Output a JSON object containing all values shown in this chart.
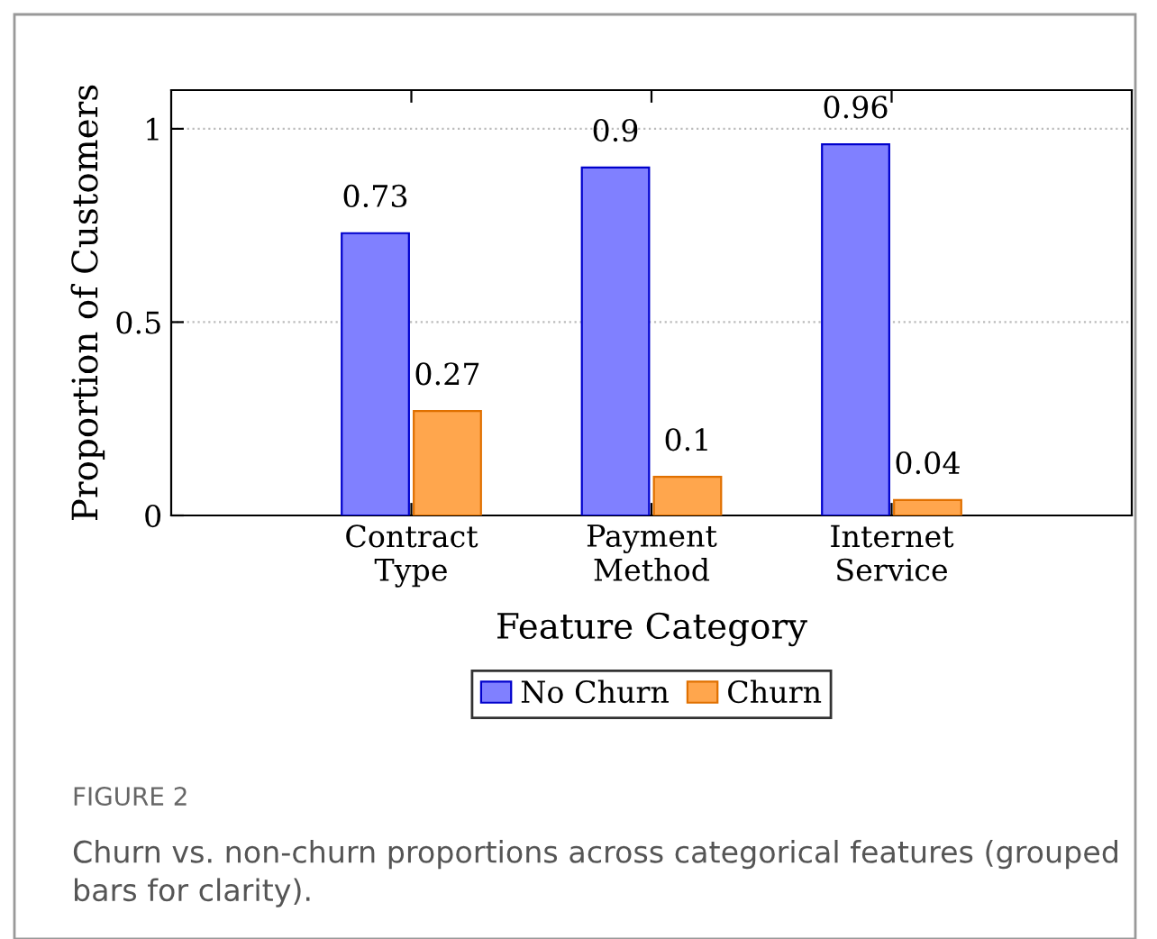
{
  "chart_data": {
    "type": "bar",
    "xlabel": "Feature Category",
    "ylabel": "Proportion of Customers",
    "categories": [
      "Contract\nType",
      "Payment\nMethod",
      "Internet\nService"
    ],
    "series": [
      {
        "name": "No Churn",
        "color": "#8080ff",
        "values": [
          0.73,
          0.9,
          0.96
        ]
      },
      {
        "name": "Churn",
        "color": "#ffa64d",
        "values": [
          0.27,
          0.1,
          0.04
        ]
      }
    ],
    "ylim": [
      0,
      1.1
    ],
    "yticks": [
      0,
      0.5,
      1
    ],
    "grid": "y",
    "legend": "bottom",
    "data_labels": true,
    "annotations": [
      "FIGURE 2",
      "Churn vs. non-churn proportions across categorical features (grouped bars for clarity)."
    ]
  }
}
